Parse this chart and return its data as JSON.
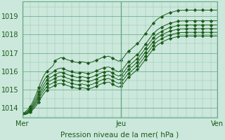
{
  "title": "Pression niveau de la mer( hPa )",
  "bg_color": "#cce8dc",
  "grid_color": "#66aa88",
  "line_color": "#1a5c1a",
  "ylim": [
    1013.5,
    1019.8
  ],
  "yticks": [
    1014,
    1015,
    1016,
    1017,
    1018,
    1019
  ],
  "xtick_labels": [
    "Mer",
    "Jeu",
    "Ven"
  ],
  "xtick_positions": [
    0,
    48,
    95
  ],
  "total_points": 96,
  "figsize": [
    3.2,
    2.0
  ],
  "dpi": 100,
  "series": [
    [
      1013.7,
      1013.75,
      1013.85,
      1013.95,
      1014.1,
      1014.3,
      1014.55,
      1014.8,
      1015.1,
      1015.4,
      1015.65,
      1015.85,
      1016.0,
      1016.1,
      1016.2,
      1016.3,
      1016.55,
      1016.65,
      1016.7,
      1016.75,
      1016.72,
      1016.68,
      1016.62,
      1016.6,
      1016.55,
      1016.52,
      1016.5,
      1016.48,
      1016.5,
      1016.52,
      1016.5,
      1016.48,
      1016.45,
      1016.48,
      1016.5,
      1016.55,
      1016.6,
      1016.65,
      1016.7,
      1016.75,
      1016.78,
      1016.8,
      1016.82,
      1016.78,
      1016.72,
      1016.65,
      1016.6,
      1016.55,
      1016.6,
      1016.7,
      1016.85,
      1017.0,
      1017.1,
      1017.2,
      1017.3,
      1017.4,
      1017.5,
      1017.6,
      1017.75,
      1017.9,
      1018.05,
      1018.2,
      1018.35,
      1018.5,
      1018.62,
      1018.75,
      1018.85,
      1018.92,
      1018.98,
      1019.05,
      1019.1,
      1019.15,
      1019.2,
      1019.22,
      1019.25,
      1019.28,
      1019.3,
      1019.32,
      1019.32,
      1019.32,
      1019.33,
      1019.33,
      1019.33,
      1019.33,
      1019.33,
      1019.33,
      1019.33,
      1019.33,
      1019.33,
      1019.33,
      1019.33,
      1019.33,
      1019.33,
      1019.33,
      1019.33,
      1019.33
    ],
    [
      1013.7,
      1013.72,
      1013.78,
      1013.88,
      1014.0,
      1014.18,
      1014.4,
      1014.62,
      1014.88,
      1015.15,
      1015.38,
      1015.58,
      1015.72,
      1015.82,
      1015.88,
      1015.95,
      1016.05,
      1016.12,
      1016.15,
      1016.18,
      1016.15,
      1016.1,
      1016.05,
      1016.02,
      1015.98,
      1015.95,
      1015.92,
      1015.9,
      1015.92,
      1015.95,
      1015.92,
      1015.9,
      1015.88,
      1015.9,
      1015.92,
      1015.97,
      1016.02,
      1016.07,
      1016.12,
      1016.17,
      1016.2,
      1016.22,
      1016.24,
      1016.2,
      1016.14,
      1016.07,
      1016.02,
      1015.97,
      1016.02,
      1016.12,
      1016.27,
      1016.42,
      1016.52,
      1016.62,
      1016.72,
      1016.82,
      1016.92,
      1017.02,
      1017.17,
      1017.32,
      1017.47,
      1017.62,
      1017.77,
      1017.92,
      1018.04,
      1018.17,
      1018.27,
      1018.34,
      1018.4,
      1018.47,
      1018.52,
      1018.57,
      1018.62,
      1018.64,
      1018.67,
      1018.7,
      1018.72,
      1018.74,
      1018.74,
      1018.74,
      1018.75,
      1018.75,
      1018.75,
      1018.75,
      1018.75,
      1018.75,
      1018.75,
      1018.75,
      1018.75,
      1018.75,
      1018.75,
      1018.75,
      1018.75,
      1018.75,
      1018.75,
      1018.75
    ],
    [
      1013.7,
      1013.7,
      1013.75,
      1013.83,
      1013.94,
      1014.1,
      1014.28,
      1014.48,
      1014.72,
      1014.97,
      1015.18,
      1015.37,
      1015.52,
      1015.62,
      1015.68,
      1015.74,
      1015.82,
      1015.88,
      1015.92,
      1015.94,
      1015.91,
      1015.87,
      1015.82,
      1015.79,
      1015.75,
      1015.72,
      1015.69,
      1015.67,
      1015.69,
      1015.72,
      1015.69,
      1015.67,
      1015.65,
      1015.67,
      1015.69,
      1015.74,
      1015.79,
      1015.84,
      1015.89,
      1015.94,
      1015.97,
      1015.99,
      1016.01,
      1015.97,
      1015.91,
      1015.84,
      1015.79,
      1015.74,
      1015.79,
      1015.89,
      1016.04,
      1016.19,
      1016.29,
      1016.39,
      1016.49,
      1016.59,
      1016.69,
      1016.79,
      1016.94,
      1017.09,
      1017.24,
      1017.39,
      1017.54,
      1017.69,
      1017.81,
      1017.94,
      1018.04,
      1018.11,
      1018.17,
      1018.24,
      1018.29,
      1018.34,
      1018.39,
      1018.41,
      1018.44,
      1018.47,
      1018.49,
      1018.51,
      1018.51,
      1018.51,
      1018.52,
      1018.52,
      1018.52,
      1018.52,
      1018.52,
      1018.52,
      1018.52,
      1018.52,
      1018.52,
      1018.52,
      1018.52,
      1018.52,
      1018.52,
      1018.52,
      1018.52,
      1018.52
    ],
    [
      1013.7,
      1013.68,
      1013.72,
      1013.79,
      1013.89,
      1014.03,
      1014.19,
      1014.37,
      1014.59,
      1014.82,
      1015.02,
      1015.2,
      1015.34,
      1015.44,
      1015.5,
      1015.56,
      1015.63,
      1015.69,
      1015.72,
      1015.74,
      1015.71,
      1015.67,
      1015.62,
      1015.59,
      1015.55,
      1015.52,
      1015.49,
      1015.47,
      1015.49,
      1015.52,
      1015.49,
      1015.47,
      1015.45,
      1015.47,
      1015.49,
      1015.54,
      1015.59,
      1015.64,
      1015.69,
      1015.74,
      1015.77,
      1015.79,
      1015.81,
      1015.77,
      1015.71,
      1015.64,
      1015.59,
      1015.54,
      1015.59,
      1015.69,
      1015.84,
      1015.99,
      1016.09,
      1016.19,
      1016.29,
      1016.39,
      1016.49,
      1016.59,
      1016.74,
      1016.89,
      1017.04,
      1017.19,
      1017.34,
      1017.49,
      1017.61,
      1017.74,
      1017.84,
      1017.91,
      1017.97,
      1018.04,
      1018.09,
      1018.14,
      1018.19,
      1018.21,
      1018.24,
      1018.27,
      1018.29,
      1018.31,
      1018.31,
      1018.31,
      1018.32,
      1018.32,
      1018.32,
      1018.32,
      1018.32,
      1018.32,
      1018.32,
      1018.32,
      1018.32,
      1018.32,
      1018.32,
      1018.32,
      1018.32,
      1018.32,
      1018.32,
      1018.32
    ],
    [
      1013.7,
      1013.66,
      1013.69,
      1013.75,
      1013.84,
      1013.96,
      1014.1,
      1014.26,
      1014.46,
      1014.67,
      1014.86,
      1015.03,
      1015.16,
      1015.26,
      1015.31,
      1015.37,
      1015.44,
      1015.5,
      1015.52,
      1015.54,
      1015.51,
      1015.47,
      1015.42,
      1015.39,
      1015.35,
      1015.32,
      1015.29,
      1015.27,
      1015.29,
      1015.32,
      1015.29,
      1015.27,
      1015.25,
      1015.27,
      1015.29,
      1015.34,
      1015.39,
      1015.44,
      1015.49,
      1015.54,
      1015.57,
      1015.59,
      1015.61,
      1015.57,
      1015.51,
      1015.44,
      1015.39,
      1015.34,
      1015.39,
      1015.49,
      1015.64,
      1015.79,
      1015.89,
      1015.99,
      1016.09,
      1016.19,
      1016.29,
      1016.39,
      1016.54,
      1016.69,
      1016.84,
      1016.99,
      1017.14,
      1017.29,
      1017.41,
      1017.54,
      1017.64,
      1017.71,
      1017.77,
      1017.84,
      1017.89,
      1017.94,
      1017.99,
      1018.01,
      1018.04,
      1018.07,
      1018.09,
      1018.11,
      1018.11,
      1018.11,
      1018.12,
      1018.12,
      1018.12,
      1018.12,
      1018.12,
      1018.12,
      1018.12,
      1018.12,
      1018.12,
      1018.12,
      1018.12,
      1018.12,
      1018.12,
      1018.12,
      1018.12,
      1018.12
    ],
    [
      1013.7,
      1013.64,
      1013.66,
      1013.71,
      1013.79,
      1013.89,
      1014.01,
      1014.15,
      1014.33,
      1014.52,
      1014.7,
      1014.86,
      1014.98,
      1015.07,
      1015.12,
      1015.18,
      1015.25,
      1015.31,
      1015.33,
      1015.34,
      1015.31,
      1015.27,
      1015.22,
      1015.19,
      1015.15,
      1015.12,
      1015.09,
      1015.07,
      1015.09,
      1015.12,
      1015.09,
      1015.07,
      1015.05,
      1015.07,
      1015.09,
      1015.14,
      1015.19,
      1015.24,
      1015.29,
      1015.34,
      1015.37,
      1015.39,
      1015.41,
      1015.37,
      1015.31,
      1015.24,
      1015.19,
      1015.14,
      1015.19,
      1015.29,
      1015.44,
      1015.59,
      1015.69,
      1015.79,
      1015.89,
      1015.99,
      1016.09,
      1016.19,
      1016.34,
      1016.49,
      1016.64,
      1016.79,
      1016.94,
      1017.09,
      1017.21,
      1017.34,
      1017.44,
      1017.51,
      1017.57,
      1017.64,
      1017.69,
      1017.74,
      1017.79,
      1017.81,
      1017.84,
      1017.87,
      1017.89,
      1017.91,
      1017.91,
      1017.91,
      1017.92,
      1017.92,
      1017.92,
      1017.92,
      1017.92,
      1017.92,
      1017.92,
      1017.92,
      1017.92,
      1017.92,
      1017.92,
      1017.92,
      1017.92,
      1017.92,
      1017.92,
      1017.92
    ]
  ]
}
